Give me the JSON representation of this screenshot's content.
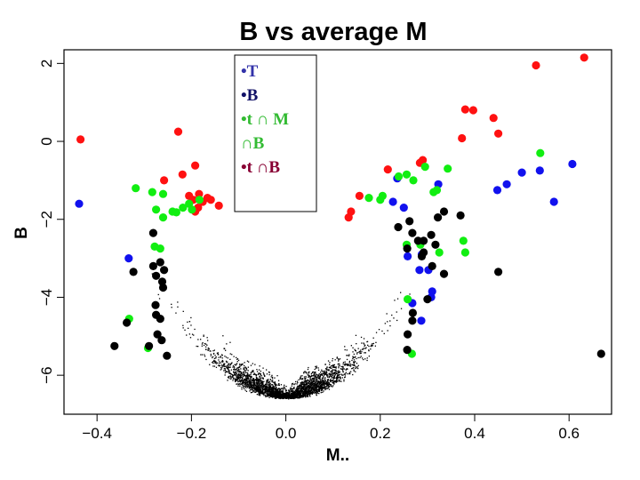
{
  "chart_data": {
    "type": "scatter",
    "title": "B vs average M",
    "xlabel": "M..",
    "ylabel": "B",
    "xlim": [
      -0.47,
      0.69
    ],
    "ylim": [
      -7.0,
      2.35
    ],
    "x_ticks": [
      "−0.4",
      "−0.2",
      "0.0",
      "0.2",
      "0.4",
      "0.6"
    ],
    "y_ticks": [
      "−6",
      "−4",
      "−2",
      "0",
      "2"
    ],
    "grid": false,
    "legend_position": "top-center",
    "legend": [
      {
        "marker": "•",
        "text": "T",
        "color": "#3333aa"
      },
      {
        "marker": "•",
        "text": "B",
        "color": "#111166"
      },
      {
        "marker": "•",
        "text": "t ∩ M",
        "color": "#33bb33"
      },
      {
        "marker": "",
        "text": "∩B",
        "color": "#33bb33"
      },
      {
        "marker": "•",
        "text": "t ∩B",
        "color": "#880033"
      }
    ],
    "colors": {
      "red": "#ff1111",
      "blue": "#1111ee",
      "green": "#11ee11",
      "black": "#000000",
      "small": "#000000"
    },
    "series": [
      {
        "color": "red",
        "points": [
          [
            -0.435,
            0.05
          ],
          [
            -0.228,
            0.25
          ],
          [
            -0.258,
            -1.0
          ],
          [
            -0.219,
            -0.85
          ],
          [
            -0.192,
            -0.62
          ],
          [
            -0.205,
            -1.4
          ],
          [
            -0.196,
            -1.5
          ],
          [
            -0.186,
            -1.7
          ],
          [
            -0.176,
            -1.55
          ],
          [
            -0.166,
            -1.45
          ],
          [
            -0.159,
            -1.5
          ],
          [
            -0.142,
            -1.65
          ],
          [
            -0.192,
            -1.8
          ],
          [
            -0.184,
            -1.35
          ],
          [
            0.133,
            -1.95
          ],
          [
            0.138,
            -1.8
          ],
          [
            0.156,
            -1.4
          ],
          [
            0.216,
            -0.72
          ],
          [
            0.284,
            -0.55
          ],
          [
            0.29,
            -0.48
          ],
          [
            0.373,
            0.08
          ],
          [
            0.38,
            0.82
          ],
          [
            0.397,
            0.8
          ],
          [
            0.44,
            0.6
          ],
          [
            0.45,
            0.2
          ],
          [
            0.53,
            1.95
          ],
          [
            0.632,
            2.15
          ]
        ]
      },
      {
        "color": "blue",
        "points": [
          [
            -0.438,
            -1.6
          ],
          [
            -0.333,
            -3.0
          ],
          [
            0.227,
            -1.55
          ],
          [
            0.236,
            -0.95
          ],
          [
            0.25,
            -1.7
          ],
          [
            0.283,
            -3.3
          ],
          [
            0.258,
            -2.95
          ],
          [
            0.288,
            -2.9
          ],
          [
            0.302,
            -3.3
          ],
          [
            0.308,
            -4.0
          ],
          [
            0.31,
            -3.85
          ],
          [
            0.268,
            -4.15
          ],
          [
            0.287,
            -4.6
          ],
          [
            0.323,
            -1.1
          ],
          [
            0.448,
            -1.25
          ],
          [
            0.468,
            -1.1
          ],
          [
            0.5,
            -0.8
          ],
          [
            0.538,
            -0.75
          ],
          [
            0.568,
            -1.55
          ],
          [
            0.607,
            -0.58
          ]
        ]
      },
      {
        "color": "green",
        "points": [
          [
            -0.318,
            -1.2
          ],
          [
            -0.283,
            -1.3
          ],
          [
            -0.26,
            -1.35
          ],
          [
            -0.275,
            -1.75
          ],
          [
            -0.26,
            -1.95
          ],
          [
            -0.24,
            -1.8
          ],
          [
            -0.232,
            -1.82
          ],
          [
            -0.218,
            -1.7
          ],
          [
            -0.205,
            -1.6
          ],
          [
            -0.199,
            -1.75
          ],
          [
            -0.183,
            -1.5
          ],
          [
            -0.278,
            -2.7
          ],
          [
            -0.266,
            -2.75
          ],
          [
            -0.332,
            -4.55
          ],
          [
            -0.292,
            -5.3
          ],
          [
            0.176,
            -1.45
          ],
          [
            0.2,
            -1.5
          ],
          [
            0.205,
            -1.4
          ],
          [
            0.239,
            -0.9
          ],
          [
            0.256,
            -0.85
          ],
          [
            0.27,
            -1.0
          ],
          [
            0.295,
            -0.65
          ],
          [
            0.313,
            -1.3
          ],
          [
            0.32,
            -1.25
          ],
          [
            0.343,
            -0.7
          ],
          [
            0.256,
            -2.65
          ],
          [
            0.285,
            -2.65
          ],
          [
            0.325,
            -2.85
          ],
          [
            0.38,
            -2.85
          ],
          [
            0.376,
            -2.55
          ],
          [
            0.258,
            -4.05
          ],
          [
            0.267,
            -5.45
          ],
          [
            0.539,
            -0.3
          ]
        ]
      },
      {
        "color": "black",
        "points": [
          [
            -0.323,
            -3.35
          ],
          [
            -0.281,
            -2.35
          ],
          [
            -0.281,
            -3.2
          ],
          [
            -0.266,
            -3.1
          ],
          [
            -0.262,
            -3.6
          ],
          [
            -0.26,
            -3.75
          ],
          [
            -0.275,
            -3.45
          ],
          [
            -0.276,
            -4.2
          ],
          [
            -0.275,
            -4.45
          ],
          [
            -0.266,
            -4.55
          ],
          [
            -0.272,
            -4.95
          ],
          [
            -0.263,
            -5.1
          ],
          [
            -0.252,
            -5.5
          ],
          [
            -0.29,
            -5.25
          ],
          [
            -0.337,
            -4.65
          ],
          [
            -0.363,
            -5.25
          ],
          [
            -0.258,
            -3.3
          ],
          [
            0.238,
            -2.2
          ],
          [
            0.262,
            -2.05
          ],
          [
            0.268,
            -2.35
          ],
          [
            0.257,
            -2.75
          ],
          [
            0.28,
            -2.55
          ],
          [
            0.288,
            -2.95
          ],
          [
            0.292,
            -2.85
          ],
          [
            0.292,
            -2.55
          ],
          [
            0.308,
            -2.4
          ],
          [
            0.317,
            -2.65
          ],
          [
            0.322,
            -1.95
          ],
          [
            0.335,
            -1.8
          ],
          [
            0.37,
            -1.9
          ],
          [
            0.31,
            -3.2
          ],
          [
            0.335,
            -3.4
          ],
          [
            0.45,
            -3.35
          ],
          [
            0.3,
            -4.05
          ],
          [
            0.269,
            -4.4
          ],
          [
            0.268,
            -4.6
          ],
          [
            0.258,
            -4.95
          ],
          [
            0.257,
            -5.35
          ],
          [
            0.668,
            -5.45
          ]
        ]
      }
    ]
  }
}
